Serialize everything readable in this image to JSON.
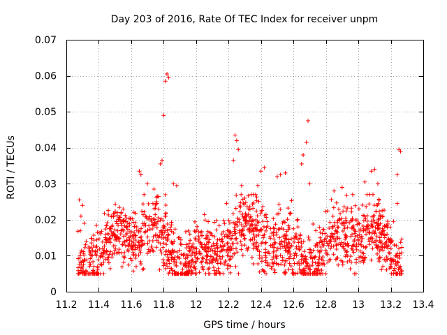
{
  "chart_data": {
    "type": "scatter",
    "title": "Day 203 of 2016, Rate Of TEC Index for receiver unpm",
    "xlabel": "GPS time / hours",
    "ylabel": "ROTI / TECUs",
    "xlim": [
      11.2,
      13.4
    ],
    "ylim": [
      0,
      0.07
    ],
    "xticks": [
      11.2,
      11.4,
      11.6,
      11.8,
      12.0,
      12.2,
      12.4,
      12.6,
      12.8,
      13.0,
      13.2,
      13.4
    ],
    "xtick_labels": [
      "11.2",
      "11.4",
      "11.6",
      "11.8",
      "12",
      "12.2",
      "12.4",
      "12.6",
      "12.8",
      "13",
      "13.2",
      "13.4"
    ],
    "yticks": [
      0,
      0.01,
      0.02,
      0.03,
      0.04,
      0.05,
      0.06,
      0.07
    ],
    "ytick_labels": [
      "0",
      "0.01",
      "0.02",
      "0.03",
      "0.04",
      "0.05",
      "0.06",
      "0.07"
    ],
    "grid": true,
    "marker": "plus",
    "color": "#ff0000",
    "series": [
      {
        "name": "ROTI",
        "points": [
          [
            11.28,
            0.0255
          ],
          [
            11.3,
            0.024
          ],
          [
            11.29,
            0.021
          ],
          [
            11.31,
            0.019
          ],
          [
            11.8,
            0.049
          ],
          [
            11.81,
            0.0585
          ],
          [
            11.82,
            0.0605
          ],
          [
            11.83,
            0.0595
          ],
          [
            11.78,
            0.0355
          ],
          [
            11.79,
            0.0365
          ],
          [
            11.65,
            0.0335
          ],
          [
            11.66,
            0.0325
          ],
          [
            11.7,
            0.03
          ],
          [
            11.74,
            0.0285
          ],
          [
            11.86,
            0.03
          ],
          [
            11.88,
            0.0295
          ],
          [
            12.24,
            0.0435
          ],
          [
            12.25,
            0.042
          ],
          [
            12.26,
            0.0395
          ],
          [
            12.23,
            0.0365
          ],
          [
            12.28,
            0.0295
          ],
          [
            12.3,
            0.026
          ],
          [
            12.38,
            0.0295
          ],
          [
            12.4,
            0.0335
          ],
          [
            12.42,
            0.0345
          ],
          [
            12.5,
            0.032
          ],
          [
            12.52,
            0.0325
          ],
          [
            12.55,
            0.033
          ],
          [
            12.65,
            0.0355
          ],
          [
            12.66,
            0.038
          ],
          [
            12.68,
            0.0415
          ],
          [
            12.69,
            0.0475
          ],
          [
            12.7,
            0.03
          ],
          [
            12.85,
            0.028
          ],
          [
            12.9,
            0.029
          ],
          [
            13.04,
            0.0305
          ],
          [
            13.08,
            0.0335
          ],
          [
            13.1,
            0.034
          ],
          [
            13.12,
            0.03
          ],
          [
            13.24,
            0.0325
          ],
          [
            13.25,
            0.0395
          ],
          [
            13.26,
            0.039
          ],
          [
            13.24,
            0.0245
          ]
        ]
      }
    ],
    "dense_band": {
      "x_range": [
        11.27,
        13.27
      ],
      "y_range": [
        0.005,
        0.027
      ],
      "point_count": 1700,
      "description": "dense cloud of ROTI samples"
    }
  }
}
